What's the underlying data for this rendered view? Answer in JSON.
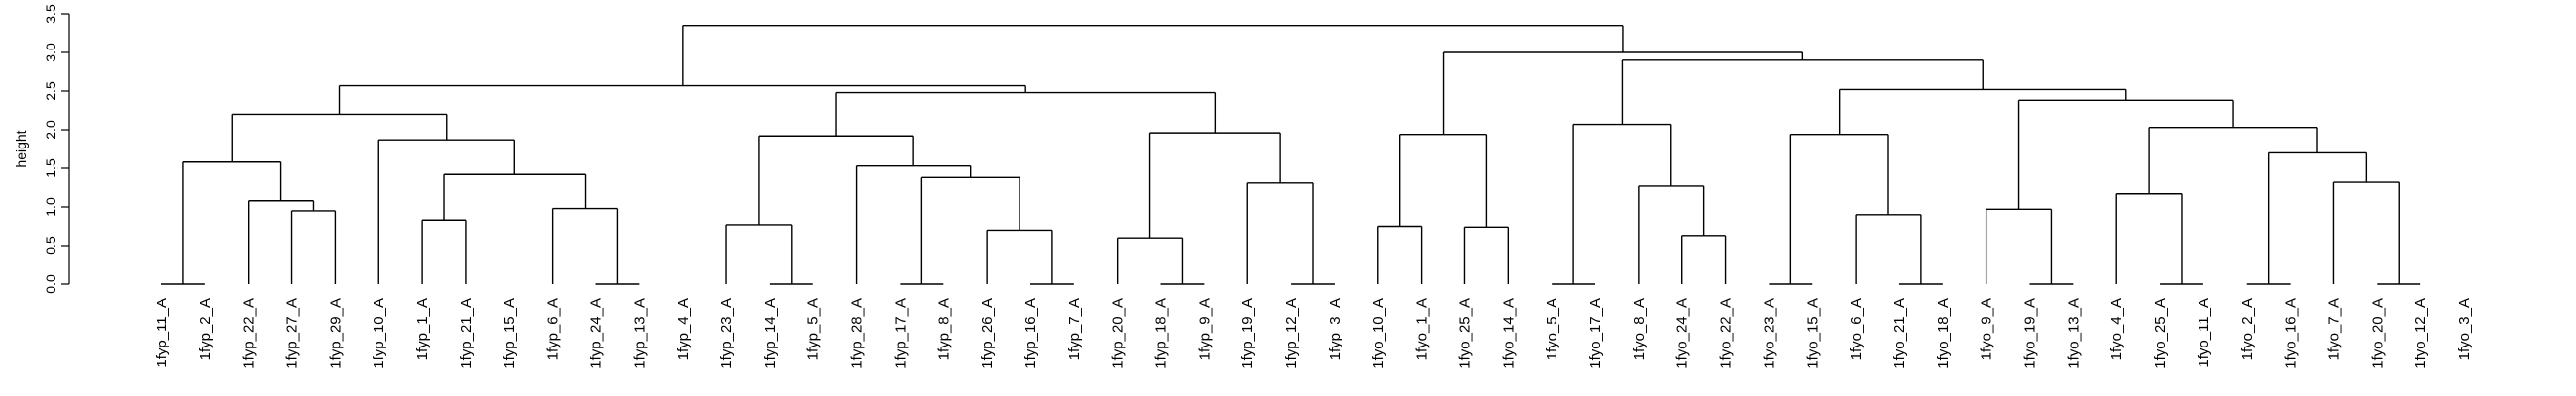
{
  "chart_data": {
    "type": "dendrogram",
    "title": "",
    "xlabel": "",
    "ylabel": "height",
    "ylim": [
      0,
      3.5
    ],
    "yticks": [
      "0.0",
      "0.5",
      "1.0",
      "1.5",
      "2.0",
      "2.5",
      "3.0",
      "3.5"
    ],
    "leaves": [
      "1fyp_11_A",
      "1fyp_2_A",
      "1fyp_22_A",
      "1fyp_27_A",
      "1fyp_29_A",
      "1fyp_10_A",
      "1fyp_1_A",
      "1fyp_21_A",
      "1fyp_15_A",
      "1fyp_6_A",
      "1fyp_24_A",
      "1fyp_13_A",
      "1fyp_4_A",
      "1fyp_23_A",
      "1fyp_14_A",
      "1fyp_5_A",
      "1fyp_28_A",
      "1fyp_17_A",
      "1fyp_8_A",
      "1fyp_26_A",
      "1fyp_16_A",
      "1fyp_7_A",
      "1fyp_20_A",
      "1fyp_18_A",
      "1fyp_9_A",
      "1fyp_19_A",
      "1fyp_12_A",
      "1fyp_3_A",
      "1fyo_10_A",
      "1fyo_1_A",
      "1fyo_25_A",
      "1fyo_14_A",
      "1fyo_5_A",
      "1fyo_17_A",
      "1fyo_8_A",
      "1fyo_24_A",
      "1fyo_22_A",
      "1fyo_23_A",
      "1fyo_15_A",
      "1fyo_6_A",
      "1fyo_21_A",
      "1fyo_18_A",
      "1fyo_9_A",
      "1fyo_19_A",
      "1fyo_13_A",
      "1fyo_4_A",
      "1fyo_25_A",
      "1fyo_11_A",
      "1fyo_2_A",
      "1fyo_16_A",
      "1fyo_7_A",
      "1fyo_20_A",
      "1fyo_12_A",
      "1fyo_3_A"
    ],
    "merges": [
      {
        "height": 3.35,
        "children": [
          [
            "cluster",
            1
          ],
          [
            "cluster",
            2
          ]
        ]
      },
      {
        "height": 2.57,
        "children": [
          [
            "cluster",
            3
          ],
          [
            "cluster",
            4
          ]
        ]
      },
      {
        "height": 3.0,
        "children": [
          [
            "cluster",
            5
          ],
          [
            "cluster",
            6
          ]
        ]
      },
      {
        "height": 2.2,
        "children": [
          [
            "cluster",
            7
          ],
          [
            "cluster",
            8
          ]
        ]
      },
      {
        "height": 2.48,
        "children": [
          [
            "cluster",
            9
          ],
          [
            "cluster",
            10
          ]
        ]
      },
      {
        "height": 1.94,
        "children": [
          [
            "cluster",
            11
          ],
          [
            "cluster",
            12
          ]
        ]
      },
      {
        "height": 2.9,
        "children": [
          [
            "cluster",
            13
          ],
          [
            "cluster",
            14
          ]
        ]
      },
      {
        "height": 1.58,
        "children": [
          [
            "cluster",
            15
          ],
          [
            "cluster",
            16
          ]
        ]
      },
      {
        "height": 1.87,
        "children": [
          [
            "leaf",
            5
          ],
          [
            "cluster",
            17
          ]
        ]
      },
      {
        "height": 1.92,
        "children": [
          [
            "cluster",
            18
          ],
          [
            "cluster",
            19
          ]
        ]
      },
      {
        "height": 1.96,
        "children": [
          [
            "cluster",
            20
          ],
          [
            "cluster",
            21
          ]
        ]
      },
      {
        "height": 0.75,
        "children": [
          [
            "leaf",
            28
          ],
          [
            "leaf",
            29
          ]
        ]
      },
      {
        "height": 0.74,
        "children": [
          [
            "leaf",
            30
          ],
          [
            "leaf",
            31
          ]
        ]
      },
      {
        "height": 2.07,
        "children": [
          [
            "cluster",
            22
          ],
          [
            "cluster",
            23
          ]
        ]
      },
      {
        "height": 2.52,
        "children": [
          [
            "cluster",
            24
          ],
          [
            "cluster",
            25
          ]
        ]
      },
      {
        "height": 0.0,
        "children": [
          [
            "leaf",
            0
          ],
          [
            "leaf",
            1
          ]
        ]
      },
      {
        "height": 1.08,
        "children": [
          [
            "leaf",
            2
          ],
          [
            "cluster",
            26
          ]
        ]
      },
      {
        "height": 1.42,
        "children": [
          [
            "cluster",
            27
          ],
          [
            "cluster",
            28
          ]
        ]
      },
      {
        "height": 0.77,
        "children": [
          [
            "leaf",
            13
          ],
          [
            "cluster",
            29
          ]
        ]
      },
      {
        "height": 1.53,
        "children": [
          [
            "leaf",
            16
          ],
          [
            "cluster",
            30
          ]
        ]
      },
      {
        "height": 0.6,
        "children": [
          [
            "leaf",
            22
          ],
          [
            "cluster",
            31
          ]
        ]
      },
      {
        "height": 1.31,
        "children": [
          [
            "leaf",
            25
          ],
          [
            "cluster",
            32
          ]
        ]
      },
      {
        "height": 0.0,
        "children": [
          [
            "leaf",
            32
          ],
          [
            "leaf",
            33
          ]
        ]
      },
      {
        "height": 1.27,
        "children": [
          [
            "leaf",
            34
          ],
          [
            "cluster",
            33
          ]
        ]
      },
      {
        "height": 1.94,
        "children": [
          [
            "cluster",
            34
          ],
          [
            "cluster",
            35
          ]
        ]
      },
      {
        "height": 2.38,
        "children": [
          [
            "cluster",
            36
          ],
          [
            "cluster",
            37
          ]
        ]
      },
      {
        "height": 0.95,
        "children": [
          [
            "leaf",
            3
          ],
          [
            "leaf",
            4
          ]
        ]
      },
      {
        "height": 0.83,
        "children": [
          [
            "leaf",
            6
          ],
          [
            "leaf",
            7
          ]
        ]
      },
      {
        "height": 0.98,
        "children": [
          [
            "leaf",
            9
          ],
          [
            "cluster",
            38
          ]
        ]
      },
      {
        "height": 0.0,
        "children": [
          [
            "leaf",
            14
          ],
          [
            "leaf",
            15
          ]
        ]
      },
      {
        "height": 1.38,
        "children": [
          [
            "cluster",
            39
          ],
          [
            "cluster",
            40
          ]
        ]
      },
      {
        "height": 0.0,
        "children": [
          [
            "leaf",
            23
          ],
          [
            "leaf",
            24
          ]
        ]
      },
      {
        "height": 0.0,
        "children": [
          [
            "leaf",
            26
          ],
          [
            "leaf",
            27
          ]
        ]
      },
      {
        "height": 0.63,
        "children": [
          [
            "leaf",
            35
          ],
          [
            "leaf",
            36
          ]
        ]
      },
      {
        "height": 0.0,
        "children": [
          [
            "leaf",
            37
          ],
          [
            "leaf",
            38
          ]
        ]
      },
      {
        "height": 0.9,
        "children": [
          [
            "leaf",
            39
          ],
          [
            "cluster",
            41
          ]
        ]
      },
      {
        "height": 0.97,
        "children": [
          [
            "leaf",
            42
          ],
          [
            "cluster",
            42
          ]
        ]
      },
      {
        "height": 2.03,
        "children": [
          [
            "cluster",
            43
          ],
          [
            "cluster",
            44
          ]
        ]
      },
      {
        "height": 0.0,
        "children": [
          [
            "leaf",
            10
          ],
          [
            "leaf",
            11
          ]
        ]
      },
      {
        "height": 0.0,
        "children": [
          [
            "leaf",
            17
          ],
          [
            "leaf",
            18
          ]
        ]
      },
      {
        "height": 0.7,
        "children": [
          [
            "leaf",
            19
          ],
          [
            "cluster",
            45
          ]
        ]
      },
      {
        "height": 0.0,
        "children": [
          [
            "leaf",
            40
          ],
          [
            "leaf",
            41
          ]
        ]
      },
      {
        "height": 0.0,
        "children": [
          [
            "leaf",
            43
          ],
          [
            "leaf",
            44
          ]
        ]
      },
      {
        "height": 1.17,
        "children": [
          [
            "leaf",
            45
          ],
          [
            "cluster",
            46
          ]
        ]
      },
      {
        "height": 1.7,
        "children": [
          [
            "cluster",
            47
          ],
          [
            "cluster",
            48
          ]
        ]
      },
      {
        "height": 0.0,
        "children": [
          [
            "leaf",
            20
          ],
          [
            "leaf",
            21
          ]
        ]
      },
      {
        "height": 0.0,
        "children": [
          [
            "leaf",
            46
          ],
          [
            "leaf",
            47
          ]
        ]
      },
      {
        "height": 0.0,
        "children": [
          [
            "leaf",
            48
          ],
          [
            "leaf",
            49
          ]
        ]
      },
      {
        "height": 1.32,
        "children": [
          [
            "leaf",
            50
          ],
          [
            "cluster",
            49
          ]
        ]
      },
      {
        "height": 0.0,
        "children": [
          [
            "leaf",
            51
          ],
          [
            "leaf",
            52
          ]
        ]
      }
    ],
    "colors": {
      "line": "#000000",
      "background": "#ffffff"
    }
  }
}
